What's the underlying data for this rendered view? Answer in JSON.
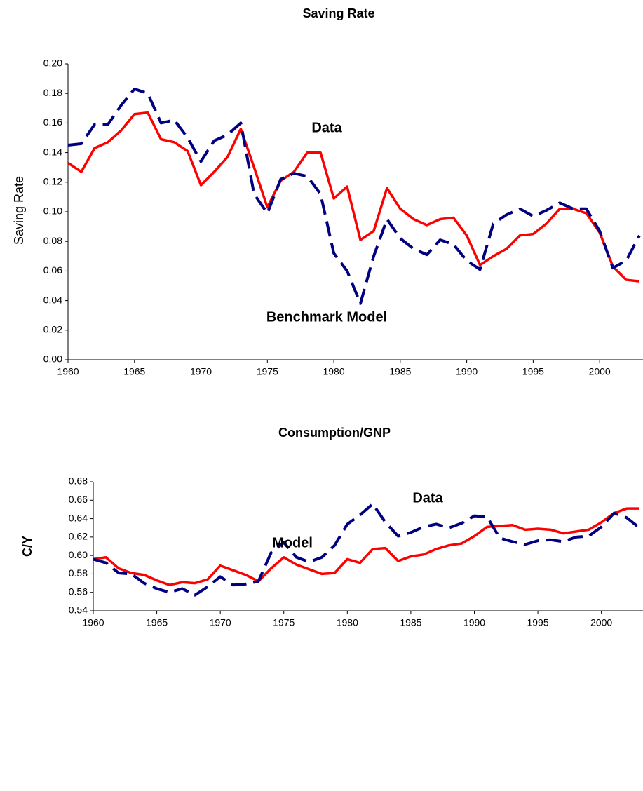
{
  "chart_data": [
    {
      "type": "line",
      "title": "Saving Rate",
      "y_label": "Saving Rate",
      "x": [
        1960,
        1961,
        1962,
        1963,
        1964,
        1965,
        1966,
        1967,
        1968,
        1969,
        1970,
        1971,
        1972,
        1973,
        1974,
        1975,
        1976,
        1977,
        1978,
        1979,
        1980,
        1981,
        1982,
        1983,
        1984,
        1985,
        1986,
        1987,
        1988,
        1989,
        1990,
        1991,
        1992,
        1993,
        1994,
        1995,
        1996,
        1997,
        1998,
        1999,
        2000,
        2001,
        2002,
        2003
      ],
      "series": [
        {
          "color": "#ff0000",
          "dashed": false,
          "values": [
            0.133,
            0.127,
            0.143,
            0.147,
            0.155,
            0.166,
            0.167,
            0.149,
            0.147,
            0.141,
            0.118,
            0.127,
            0.137,
            0.156,
            0.13,
            0.103,
            0.121,
            0.127,
            0.14,
            0.14,
            0.109,
            0.117,
            0.081,
            0.087,
            0.116,
            0.102,
            0.095,
            0.091,
            0.095,
            0.096,
            0.084,
            0.064,
            0.07,
            0.075,
            0.084,
            0.085,
            0.092,
            0.102,
            0.102,
            0.099,
            0.086,
            0.063,
            0.054,
            0.053
          ]
        },
        {
          "color": "#000080",
          "dashed": true,
          "values": [
            0.145,
            0.146,
            0.159,
            0.159,
            0.172,
            0.183,
            0.18,
            0.16,
            0.162,
            0.15,
            0.134,
            0.148,
            0.152,
            0.16,
            0.112,
            0.099,
            0.122,
            0.126,
            0.124,
            0.112,
            0.072,
            0.06,
            0.038,
            0.07,
            0.095,
            0.082,
            0.075,
            0.071,
            0.081,
            0.078,
            0.067,
            0.061,
            0.092,
            0.098,
            0.102,
            0.097,
            0.101,
            0.106,
            0.102,
            0.102,
            0.087,
            0.062,
            0.067,
            0.084
          ]
        }
      ],
      "annotations": [
        "Data",
        "Benchmark Model"
      ],
      "xlim": [
        1960,
        2003
      ],
      "xticks": [
        1960,
        1965,
        1970,
        1975,
        1980,
        1985,
        1990,
        1995,
        2000
      ],
      "ylim": [
        0,
        0.2
      ],
      "yticks": [
        {
          "value": 0,
          "label": "0.00"
        },
        0.02,
        0.04,
        0.06,
        0.08,
        {
          "value": 0.1,
          "label": "0.10"
        },
        0.12,
        0.14,
        0.16,
        0.18,
        {
          "value": 0.2,
          "label": "0.20"
        }
      ]
    },
    {
      "type": "line",
      "title": "Consumption/GNP",
      "y_label": "C/Y",
      "x": [
        1960,
        1961,
        1962,
        1963,
        1964,
        1965,
        1966,
        1967,
        1968,
        1969,
        1970,
        1971,
        1972,
        1973,
        1974,
        1975,
        1976,
        1977,
        1978,
        1979,
        1980,
        1981,
        1982,
        1983,
        1984,
        1985,
        1986,
        1987,
        1988,
        1989,
        1990,
        1991,
        1992,
        1993,
        1994,
        1995,
        1996,
        1997,
        1998,
        1999,
        2000,
        2001,
        2002,
        2003
      ],
      "series": [
        {
          "color": "#ff0000",
          "dashed": false,
          "values": [
            0.596,
            0.598,
            0.586,
            0.581,
            0.579,
            0.573,
            0.568,
            0.571,
            0.57,
            0.574,
            0.589,
            0.584,
            0.579,
            0.572,
            0.586,
            0.598,
            0.59,
            0.585,
            0.58,
            0.581,
            0.596,
            0.592,
            0.607,
            0.608,
            0.594,
            0.599,
            0.601,
            0.607,
            0.611,
            0.613,
            0.621,
            0.631,
            0.632,
            0.633,
            0.628,
            0.629,
            0.628,
            0.624,
            0.626,
            0.628,
            0.636,
            0.646,
            0.651,
            0.651
          ]
        },
        {
          "color": "#000080",
          "dashed": true,
          "values": [
            0.596,
            0.592,
            0.581,
            0.58,
            0.57,
            0.564,
            0.56,
            0.564,
            0.557,
            0.566,
            0.577,
            0.568,
            0.569,
            0.572,
            0.603,
            0.614,
            0.598,
            0.593,
            0.598,
            0.611,
            0.634,
            0.644,
            0.656,
            0.636,
            0.621,
            0.625,
            0.631,
            0.634,
            0.63,
            0.635,
            0.643,
            0.642,
            0.619,
            0.615,
            0.612,
            0.616,
            0.617,
            0.615,
            0.62,
            0.621,
            0.631,
            0.646,
            0.641,
            0.63
          ]
        }
      ],
      "annotations": [
        "Model",
        "Data"
      ],
      "xlim": [
        1960,
        2003
      ],
      "xticks": [
        1960,
        1965,
        1970,
        1975,
        1980,
        1985,
        1990,
        1995,
        2000
      ],
      "ylim": [
        0.54,
        0.68
      ],
      "yticks": [
        0.54,
        0.56,
        0.58,
        {
          "value": 0.6,
          "label": "0.60"
        },
        0.62,
        0.64,
        0.66,
        0.68
      ]
    }
  ]
}
